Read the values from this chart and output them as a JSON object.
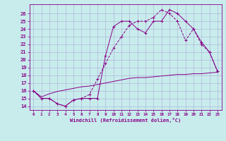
{
  "xlabel": "Windchill (Refroidissement éolien,°C)",
  "background_color": "#c8ecec",
  "grid_color": "#b0b8d8",
  "line_color": "#880088",
  "xlim": [
    -0.5,
    23.5
  ],
  "ylim": [
    13.5,
    27.2
  ],
  "xticks": [
    0,
    1,
    2,
    3,
    4,
    5,
    6,
    7,
    8,
    9,
    10,
    11,
    12,
    13,
    14,
    15,
    16,
    17,
    18,
    19,
    20,
    21,
    22,
    23
  ],
  "yticks": [
    14,
    15,
    16,
    17,
    18,
    19,
    20,
    21,
    22,
    23,
    24,
    25,
    26
  ],
  "line1_x": [
    0,
    1,
    2,
    3,
    4,
    5,
    6,
    7,
    8,
    9,
    10,
    11,
    12,
    13,
    14,
    15,
    16,
    17,
    18,
    19,
    20,
    21,
    22,
    23
  ],
  "line1_y": [
    16,
    15,
    15,
    14.3,
    14,
    14.8,
    15,
    15,
    15,
    20.5,
    24.3,
    25,
    25,
    24,
    23.5,
    25,
    25,
    26.5,
    26,
    25,
    24,
    22.3,
    21,
    18.5
  ],
  "line2_x": [
    0,
    1,
    2,
    3,
    4,
    5,
    6,
    7,
    8,
    9,
    10,
    11,
    12,
    13,
    14,
    15,
    16,
    17,
    18,
    19,
    20,
    21,
    22,
    23
  ],
  "line2_y": [
    16,
    15,
    15,
    14.3,
    14,
    14.8,
    15,
    15.5,
    17.5,
    19.5,
    21.5,
    23,
    24.5,
    25,
    25,
    25.5,
    26.5,
    26,
    25,
    22.5,
    24,
    22,
    21,
    18.5
  ],
  "line3_x": [
    0,
    1,
    2,
    3,
    4,
    5,
    6,
    7,
    8,
    9,
    10,
    11,
    12,
    13,
    14,
    15,
    16,
    17,
    18,
    19,
    20,
    21,
    22,
    23
  ],
  "line3_y": [
    16,
    15.2,
    15.6,
    15.9,
    16.1,
    16.3,
    16.5,
    16.6,
    16.8,
    17.0,
    17.2,
    17.4,
    17.6,
    17.7,
    17.7,
    17.8,
    17.9,
    18.0,
    18.1,
    18.1,
    18.2,
    18.2,
    18.3,
    18.4
  ]
}
